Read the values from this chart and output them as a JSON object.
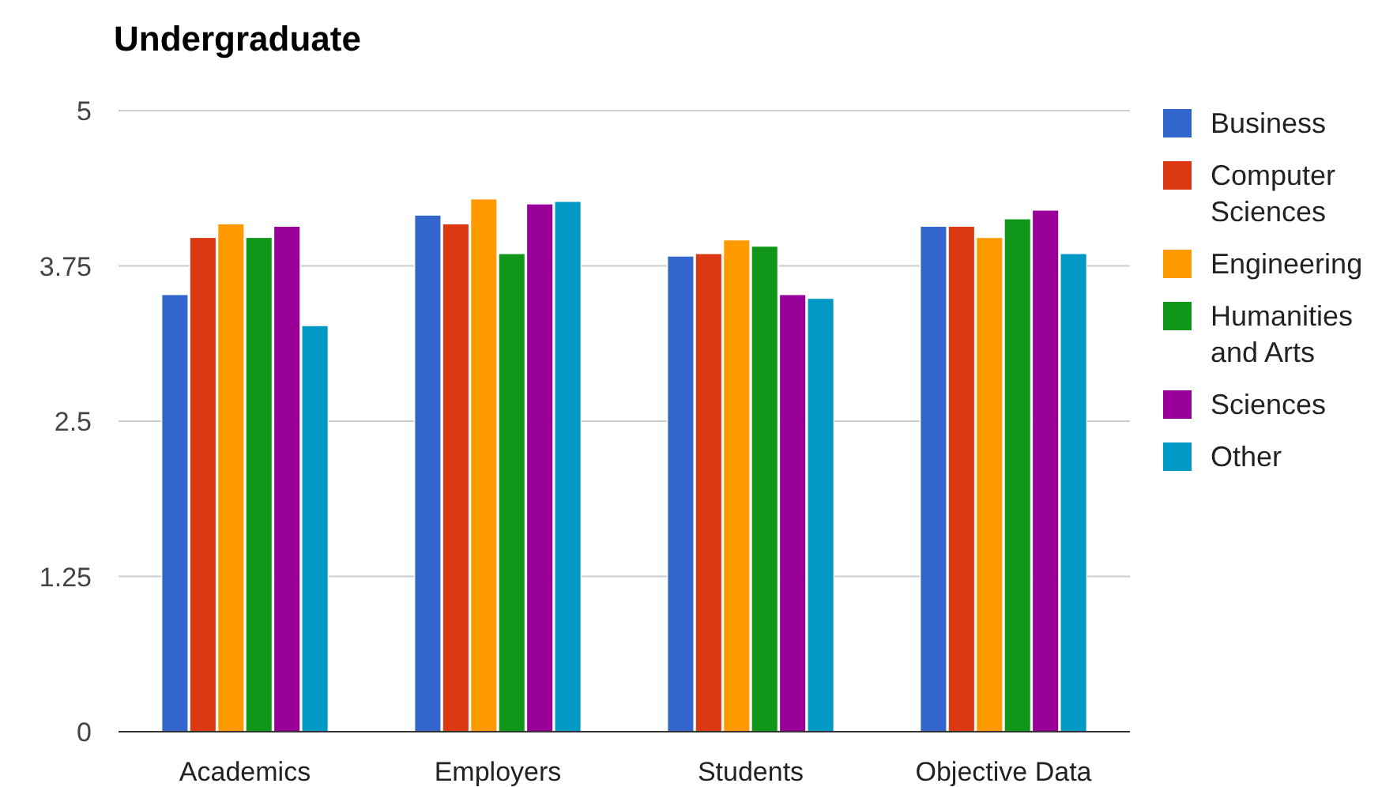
{
  "chart_data": {
    "type": "bar",
    "title": "Undergraduate",
    "categories": [
      "Academics",
      "Employers",
      "Students",
      "Objective Data"
    ],
    "series": [
      {
        "name": "Business",
        "color": "#3366cc",
        "values": [
          3.52,
          4.16,
          3.83,
          4.07
        ]
      },
      {
        "name": "Computer Sciences",
        "color": "#dc3912",
        "values": [
          3.98,
          4.09,
          3.85,
          4.07
        ]
      },
      {
        "name": "Engineering",
        "color": "#ff9900",
        "values": [
          4.09,
          4.29,
          3.96,
          3.98
        ]
      },
      {
        "name": "Humanities and Arts",
        "color": "#109618",
        "values": [
          3.98,
          3.85,
          3.91,
          4.13
        ]
      },
      {
        "name": "Sciences",
        "color": "#990099",
        "values": [
          4.07,
          4.25,
          3.52,
          4.2
        ]
      },
      {
        "name": "Other",
        "color": "#0099c6",
        "values": [
          3.27,
          4.27,
          3.49,
          3.85
        ]
      }
    ],
    "ylim": [
      0,
      5
    ],
    "yticks": [
      0,
      1.25,
      2.5,
      3.75,
      5
    ],
    "grid": "y",
    "legend": "right"
  }
}
